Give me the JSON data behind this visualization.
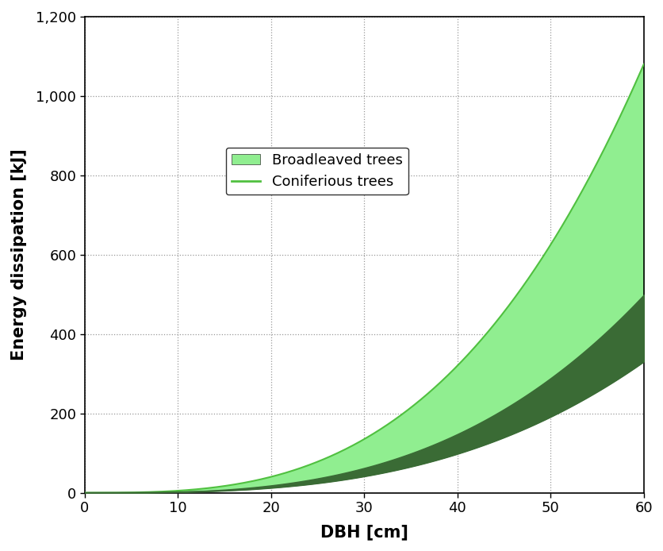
{
  "xlabel": "DBH [cm]",
  "ylabel": "Energy dissipation [kJ]",
  "xlim": [
    0,
    60
  ],
  "ylim": [
    0,
    1200
  ],
  "xticks": [
    0,
    10,
    20,
    30,
    40,
    50,
    60
  ],
  "yticks": [
    0,
    200,
    400,
    600,
    800,
    1000,
    1200
  ],
  "broadleaved_coeff": 0.005,
  "broadleaved_exp": 3.0,
  "conifer_upper_coeff": 0.00231,
  "conifer_upper_exp": 3.0,
  "conifer_lower_coeff": 0.00153,
  "conifer_lower_exp": 3.0,
  "light_green": "#90EE90",
  "dark_green": "#3a6b35",
  "background_color": "#ffffff",
  "grid_color": "#999999",
  "legend_label_broad": "Broadleaved trees",
  "legend_label_conif": "Coniferious trees",
  "axis_label_color": "#000000",
  "tick_label_color": "#000000",
  "fontsize_axis_label": 15,
  "fontsize_tick": 13,
  "fontsize_legend": 13
}
